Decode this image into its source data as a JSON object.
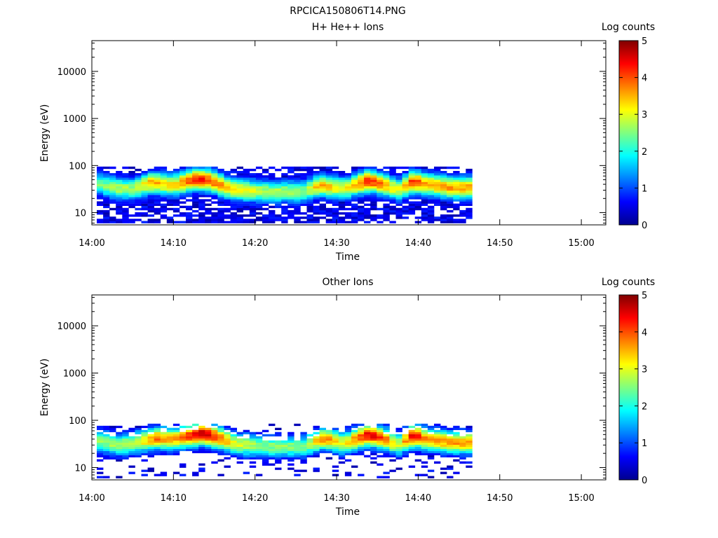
{
  "figure_title": "RPCICA150806T14.PNG",
  "chart_data": [
    {
      "type": "heatmap",
      "title": "H+ He++ Ions",
      "xlabel": "Time",
      "ylabel": "Energy (eV)",
      "xtick_labels": [
        "14:00",
        "14:10",
        "14:20",
        "14:30",
        "14:40",
        "14:50",
        "15:00"
      ],
      "xtick_minutes": [
        0,
        10,
        20,
        30,
        40,
        50,
        60
      ],
      "xlim_minutes": [
        0,
        63
      ],
      "ytick_labels": [
        "10",
        "100",
        "1000",
        "10000"
      ],
      "ytick_values": [
        10,
        100,
        1000,
        10000
      ],
      "ylim": [
        5.5,
        45000
      ],
      "yscale": "log",
      "colorbar": {
        "label": "Log counts",
        "min": 0,
        "max": 5,
        "tick_labels": [
          "0",
          "1",
          "2",
          "3",
          "4",
          "5"
        ],
        "colormap": "jet"
      },
      "data_time_range_minutes": [
        0.6,
        46.5
      ],
      "energy_range_eV": [
        6,
        95
      ],
      "peak_track": [
        {
          "t": 1,
          "E": 40,
          "c": 2.4
        },
        {
          "t": 3,
          "E": 33,
          "c": 2.8
        },
        {
          "t": 5,
          "E": 32,
          "c": 2.6
        },
        {
          "t": 7.5,
          "E": 44,
          "c": 3.6
        },
        {
          "t": 10,
          "E": 38,
          "c": 3.2
        },
        {
          "t": 13,
          "E": 52,
          "c": 4.4
        },
        {
          "t": 14.5,
          "E": 48,
          "c": 4.0
        },
        {
          "t": 17,
          "E": 32,
          "c": 3.3
        },
        {
          "t": 21,
          "E": 28,
          "c": 2.8
        },
        {
          "t": 26,
          "E": 28,
          "c": 2.6
        },
        {
          "t": 28,
          "E": 38,
          "c": 3.5
        },
        {
          "t": 31,
          "E": 32,
          "c": 3.0
        },
        {
          "t": 34,
          "E": 48,
          "c": 4.3
        },
        {
          "t": 36,
          "E": 38,
          "c": 3.5
        },
        {
          "t": 37.5,
          "E": 30,
          "c": 2.9
        },
        {
          "t": 39.5,
          "E": 46,
          "c": 4.3
        },
        {
          "t": 41,
          "E": 40,
          "c": 3.4
        },
        {
          "t": 44,
          "E": 34,
          "c": 3.6
        },
        {
          "t": 46,
          "E": 34,
          "c": 3.6
        }
      ]
    },
    {
      "type": "heatmap",
      "title": "Other Ions",
      "xlabel": "Time",
      "ylabel": "Energy (eV)",
      "xtick_labels": [
        "14:00",
        "14:10",
        "14:20",
        "14:30",
        "14:40",
        "14:50",
        "15:00"
      ],
      "xtick_minutes": [
        0,
        10,
        20,
        30,
        40,
        50,
        60
      ],
      "xlim_minutes": [
        0,
        63
      ],
      "ytick_labels": [
        "10",
        "100",
        "1000",
        "10000"
      ],
      "ytick_values": [
        10,
        100,
        1000,
        10000
      ],
      "ylim": [
        5.5,
        45000
      ],
      "yscale": "log",
      "colorbar": {
        "label": "Log counts",
        "min": 0,
        "max": 5,
        "tick_labels": [
          "0",
          "1",
          "2",
          "3",
          "4",
          "5"
        ],
        "colormap": "jet"
      },
      "data_time_range_minutes": [
        0.6,
        46.5
      ],
      "energy_range_eV": [
        6,
        85
      ],
      "peak_track": [
        {
          "t": 1,
          "E": 38,
          "c": 2.6
        },
        {
          "t": 3,
          "E": 30,
          "c": 2.7
        },
        {
          "t": 5,
          "E": 33,
          "c": 2.8
        },
        {
          "t": 8,
          "E": 42,
          "c": 3.8
        },
        {
          "t": 10,
          "E": 40,
          "c": 3.4
        },
        {
          "t": 13.5,
          "E": 52,
          "c": 4.8
        },
        {
          "t": 15,
          "E": 46,
          "c": 4.2
        },
        {
          "t": 17.5,
          "E": 32,
          "c": 3.0
        },
        {
          "t": 21,
          "E": 28,
          "c": 2.6
        },
        {
          "t": 26,
          "E": 28,
          "c": 2.5
        },
        {
          "t": 28.5,
          "E": 42,
          "c": 3.8
        },
        {
          "t": 31,
          "E": 32,
          "c": 3.0
        },
        {
          "t": 34,
          "E": 50,
          "c": 4.6
        },
        {
          "t": 36,
          "E": 40,
          "c": 3.8
        },
        {
          "t": 37.5,
          "E": 30,
          "c": 2.8
        },
        {
          "t": 39.5,
          "E": 48,
          "c": 4.6
        },
        {
          "t": 41,
          "E": 40,
          "c": 3.6
        },
        {
          "t": 44,
          "E": 34,
          "c": 3.6
        },
        {
          "t": 46,
          "E": 34,
          "c": 3.6
        }
      ]
    }
  ]
}
